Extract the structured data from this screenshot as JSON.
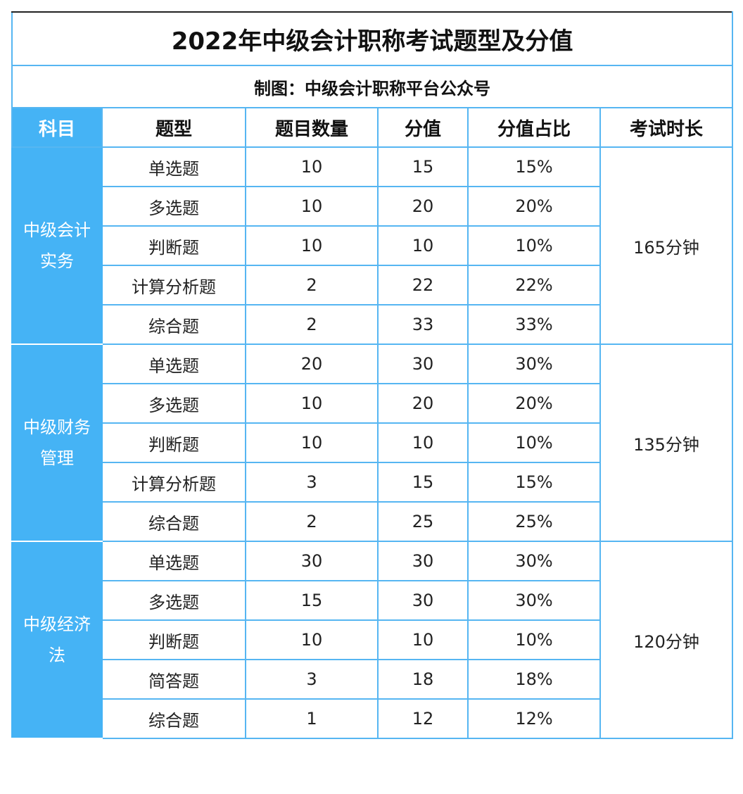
{
  "title": "2022年中级会计职称考试题型及分值",
  "subtitle": "制图：中级会计职称平台公众号",
  "table": {
    "header": [
      "科目",
      "题型",
      "题目数量",
      "分值",
      "分值占比",
      "考试时长"
    ],
    "groups": [
      {
        "subject": "中级会计实务",
        "duration": "165分钟",
        "rows": [
          [
            "单选题",
            "10",
            "15",
            "15%"
          ],
          [
            "多选题",
            "10",
            "20",
            "20%"
          ],
          [
            "判断题",
            "10",
            "10",
            "10%"
          ],
          [
            "计算分析题",
            "2",
            "22",
            "22%"
          ],
          [
            "综合题",
            "2",
            "33",
            "33%"
          ]
        ]
      },
      {
        "subject": "中级财务管理",
        "duration": "135分钟",
        "rows": [
          [
            "单选题",
            "20",
            "30",
            "30%"
          ],
          [
            "多选题",
            "10",
            "20",
            "20%"
          ],
          [
            "判断题",
            "10",
            "10",
            "10%"
          ],
          [
            "计算分析题",
            "3",
            "15",
            "15%"
          ],
          [
            "综合题",
            "2",
            "25",
            "25%"
          ]
        ]
      },
      {
        "subject": "中级经济法",
        "duration": "120分钟",
        "rows": [
          [
            "单选题",
            "30",
            "30",
            "30%"
          ],
          [
            "多选题",
            "15",
            "30",
            "30%"
          ],
          [
            "判断题",
            "10",
            "10",
            "10%"
          ],
          [
            "简答题",
            "3",
            "18",
            "18%"
          ],
          [
            "综合题",
            "1",
            "12",
            "12%"
          ]
        ]
      }
    ]
  }
}
